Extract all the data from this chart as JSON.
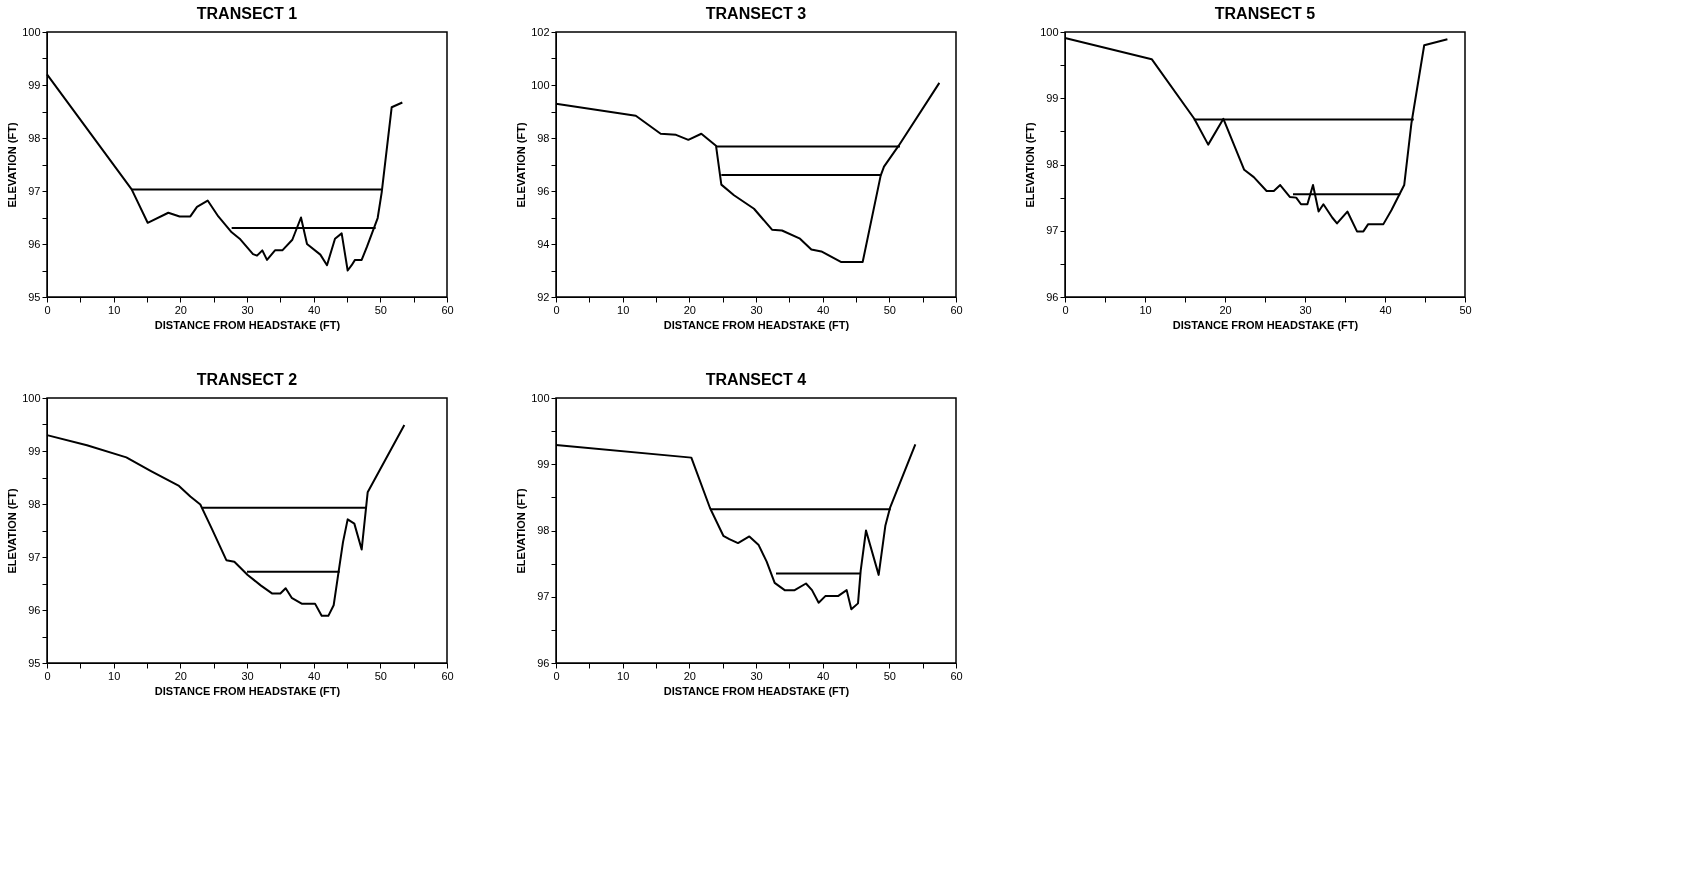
{
  "chart_data": [
    {
      "type": "line",
      "title": "TRANSECT 1",
      "xlabel": "DISTANCE FROM HEADSTAKE (FT)",
      "ylabel": "ELEVATION (FT)",
      "grid": false,
      "marker": "none",
      "line_style": "solid",
      "xlim": [
        0,
        60
      ],
      "ylim": [
        95,
        100
      ],
      "xticks": [
        0,
        {
          "value": 5,
          "label": null
        },
        10,
        {
          "value": 15,
          "label": null
        },
        20,
        {
          "value": 25,
          "label": null
        },
        30,
        {
          "value": 35,
          "label": null
        },
        40,
        {
          "value": 45,
          "label": null
        },
        50,
        {
          "value": 55,
          "label": null
        },
        60
      ],
      "yticks": [
        95,
        {
          "value": 95.5,
          "label": null
        },
        96,
        {
          "value": 96.5,
          "label": null
        },
        97,
        {
          "value": 97.5,
          "label": null
        },
        98,
        {
          "value": 98.5,
          "label": null
        },
        99,
        {
          "value": 99.5,
          "label": null
        },
        100
      ],
      "series": [
        {
          "color": "#000000",
          "x": [
            0,
            12.7,
            15.1,
            18.2,
            19.9,
            21.5,
            22.5,
            24.1,
            25.7,
            27.7,
            28.9,
            30.9,
            31.5,
            32.3,
            33.0,
            34.2,
            35.3,
            36.8,
            38.1,
            39.0,
            41.0,
            42.0,
            43.2,
            44.2,
            45.1,
            45.7,
            46.2,
            47.2,
            48.0,
            49.6,
            50.2,
            51.7,
            53.3
          ],
          "values": [
            99.2,
            97.03,
            96.4,
            96.59,
            96.52,
            96.52,
            96.7,
            96.82,
            96.52,
            96.22,
            96.1,
            95.81,
            95.78,
            95.88,
            95.7,
            95.88,
            95.88,
            96.08,
            96.5,
            96.0,
            95.8,
            95.6,
            96.1,
            96.2,
            95.5,
            95.6,
            95.7,
            95.7,
            95.95,
            96.49,
            96.97,
            98.58,
            98.67
          ]
        },
        {
          "color": "#000000",
          "x": [
            12.7,
            50.2
          ],
          "values": [
            97.03,
            97.03
          ]
        },
        {
          "color": "#000000",
          "x": [
            27.7,
            49.3
          ],
          "values": [
            96.3,
            96.3
          ]
        }
      ]
    },
    {
      "type": "line",
      "title": "TRANSECT 3",
      "xlabel": "DISTANCE FROM HEADSTAKE (FT)",
      "ylabel": "ELEVATION (FT)",
      "grid": false,
      "marker": "none",
      "line_style": "solid",
      "xlim": [
        0,
        60
      ],
      "ylim": [
        92,
        102
      ],
      "xticks": [
        0,
        {
          "value": 5,
          "label": null
        },
        10,
        {
          "value": 15,
          "label": null
        },
        20,
        {
          "value": 25,
          "label": null
        },
        30,
        {
          "value": 35,
          "label": null
        },
        40,
        {
          "value": 45,
          "label": null
        },
        50,
        {
          "value": 55,
          "label": null
        },
        60
      ],
      "yticks": [
        92,
        {
          "value": 93,
          "label": null
        },
        94,
        {
          "value": 95,
          "label": null
        },
        96,
        {
          "value": 97,
          "label": null
        },
        98,
        {
          "value": 99,
          "label": null
        },
        100,
        {
          "value": 101,
          "label": null
        },
        102
      ],
      "series": [
        {
          "color": "#000000",
          "x": [
            0,
            11.97,
            15.7,
            18.0,
            19.85,
            21.8,
            24.0,
            24.8,
            26.7,
            29.7,
            32.4,
            33.9,
            36.6,
            38.3,
            39.8,
            42.8,
            46.0,
            48.7,
            49.2,
            51.4,
            57.5
          ],
          "values": [
            99.29,
            98.84,
            98.16,
            98.12,
            97.93,
            98.16,
            97.71,
            96.24,
            95.84,
            95.33,
            94.54,
            94.51,
            94.2,
            93.79,
            93.72,
            93.32,
            93.32,
            96.58,
            96.92,
            97.71,
            100.08
          ]
        },
        {
          "color": "#000000",
          "x": [
            24.0,
            51.6
          ],
          "values": [
            97.68,
            97.68
          ]
        },
        {
          "color": "#000000",
          "x": [
            24.8,
            48.8
          ],
          "values": [
            96.6,
            96.6
          ]
        }
      ]
    },
    {
      "type": "line",
      "title": "TRANSECT 5",
      "xlabel": "DISTANCE FROM HEADSTAKE (FT)",
      "ylabel": "ELEVATION (FT)",
      "grid": false,
      "marker": "none",
      "line_style": "solid",
      "xlim": [
        0,
        50
      ],
      "ylim": [
        96,
        100
      ],
      "xticks": [
        0,
        {
          "value": 5,
          "label": null
        },
        10,
        {
          "value": 15,
          "label": null
        },
        20,
        {
          "value": 25,
          "label": null
        },
        30,
        {
          "value": 35,
          "label": null
        },
        40,
        {
          "value": 45,
          "label": null
        },
        50
      ],
      "yticks": [
        96,
        {
          "value": 96.5,
          "label": null
        },
        97,
        {
          "value": 97.5,
          "label": null
        },
        98,
        {
          "value": 98.5,
          "label": null
        },
        99,
        {
          "value": 99.5,
          "label": null
        },
        100
      ],
      "series": [
        {
          "color": "#000000",
          "x": [
            0,
            10.84,
            16.16,
            17.9,
            19.8,
            22.4,
            23.6,
            25.2,
            26.1,
            26.9,
            28.1,
            28.9,
            29.5,
            30.3,
            31.0,
            31.7,
            32.3,
            33.4,
            34.0,
            35.3,
            36.5,
            37.3,
            37.9,
            39.8,
            40.8,
            42.4,
            43.3,
            44.9,
            47.8
          ],
          "values": [
            99.91,
            99.59,
            98.69,
            98.3,
            98.69,
            97.92,
            97.81,
            97.6,
            97.6,
            97.69,
            97.51,
            97.5,
            97.4,
            97.4,
            97.69,
            97.29,
            97.4,
            97.2,
            97.11,
            97.29,
            96.99,
            96.99,
            97.1,
            97.1,
            97.31,
            97.69,
            98.62,
            99.8,
            99.89
          ]
        },
        {
          "color": "#000000",
          "x": [
            16.1,
            43.6
          ],
          "values": [
            98.68,
            98.68
          ]
        },
        {
          "color": "#000000",
          "x": [
            28.5,
            41.9
          ],
          "values": [
            97.55,
            97.55
          ]
        }
      ]
    },
    {
      "type": "line",
      "title": "TRANSECT 2",
      "xlabel": "DISTANCE FROM HEADSTAKE (FT)",
      "ylabel": "ELEVATION (FT)",
      "grid": false,
      "marker": "none",
      "line_style": "solid",
      "xlim": [
        0,
        60
      ],
      "ylim": [
        95,
        100
      ],
      "xticks": [
        0,
        {
          "value": 5,
          "label": null
        },
        10,
        {
          "value": 15,
          "label": null
        },
        20,
        {
          "value": 25,
          "label": null
        },
        30,
        {
          "value": 35,
          "label": null
        },
        40,
        {
          "value": 45,
          "label": null
        },
        50,
        {
          "value": 55,
          "label": null
        },
        60
      ],
      "yticks": [
        95,
        {
          "value": 95.5,
          "label": null
        },
        96,
        {
          "value": 96.5,
          "label": null
        },
        97,
        {
          "value": 97.5,
          "label": null
        },
        98,
        {
          "value": 98.5,
          "label": null
        },
        99,
        {
          "value": 99.5,
          "label": null
        },
        100
      ],
      "series": [
        {
          "color": "#000000",
          "x": [
            0,
            5.99,
            11.9,
            15.6,
            19.8,
            21.5,
            23.0,
            24.7,
            26.9,
            28.1,
            30.1,
            32.1,
            33.8,
            35.0,
            35.8,
            36.7,
            38.2,
            40.2,
            41.2,
            42.2,
            43.0,
            43.6,
            44.4,
            45.1,
            46.1,
            47.2,
            48.1,
            53.6
          ],
          "values": [
            99.3,
            99.11,
            98.88,
            98.62,
            98.34,
            98.14,
            97.99,
            97.54,
            96.94,
            96.91,
            96.66,
            96.46,
            96.31,
            96.31,
            96.41,
            96.23,
            96.12,
            96.12,
            95.89,
            95.89,
            96.09,
            96.6,
            97.28,
            97.71,
            97.63,
            97.14,
            98.22,
            99.49
          ]
        },
        {
          "color": "#000000",
          "x": [
            23.3,
            47.9
          ],
          "values": [
            97.93,
            97.93
          ]
        },
        {
          "color": "#000000",
          "x": [
            30.0,
            43.9
          ],
          "values": [
            96.72,
            96.72
          ]
        }
      ]
    },
    {
      "type": "line",
      "title": "TRANSECT 4",
      "xlabel": "DISTANCE FROM HEADSTAKE (FT)",
      "ylabel": "ELEVATION (FT)",
      "grid": false,
      "marker": "none",
      "line_style": "solid",
      "xlim": [
        0,
        60
      ],
      "ylim": [
        96,
        100
      ],
      "xticks": [
        0,
        {
          "value": 5,
          "label": null
        },
        10,
        {
          "value": 15,
          "label": null
        },
        20,
        {
          "value": 25,
          "label": null
        },
        30,
        {
          "value": 35,
          "label": null
        },
        40,
        {
          "value": 45,
          "label": null
        },
        50,
        {
          "value": 55,
          "label": null
        },
        60
      ],
      "yticks": [
        96,
        {
          "value": 96.5,
          "label": null
        },
        97,
        {
          "value": 97.5,
          "label": null
        },
        98,
        {
          "value": 98.5,
          "label": null
        },
        99,
        {
          "value": 99.5,
          "label": null
        },
        100
      ],
      "series": [
        {
          "color": "#000000",
          "x": [
            0,
            20.3,
            23.1,
            25.1,
            26.0,
            27.3,
            29.0,
            30.4,
            31.6,
            32.8,
            34.3,
            35.8,
            37.5,
            38.4,
            39.4,
            40.4,
            42.3,
            43.6,
            44.3,
            45.3,
            45.7,
            46.5,
            48.4,
            49.4,
            50.1,
            53.9
          ],
          "values": [
            99.29,
            99.1,
            98.34,
            97.92,
            97.87,
            97.81,
            97.91,
            97.78,
            97.53,
            97.21,
            97.1,
            97.1,
            97.2,
            97.1,
            96.91,
            97.01,
            97.01,
            97.1,
            96.81,
            96.9,
            97.39,
            98.0,
            97.33,
            98.07,
            98.34,
            99.3
          ]
        },
        {
          "color": "#000000",
          "x": [
            23.2,
            50.2
          ],
          "values": [
            98.32,
            98.32
          ]
        },
        {
          "color": "#000000",
          "x": [
            33.0,
            45.7
          ],
          "values": [
            97.35,
            97.35
          ]
        }
      ]
    }
  ]
}
